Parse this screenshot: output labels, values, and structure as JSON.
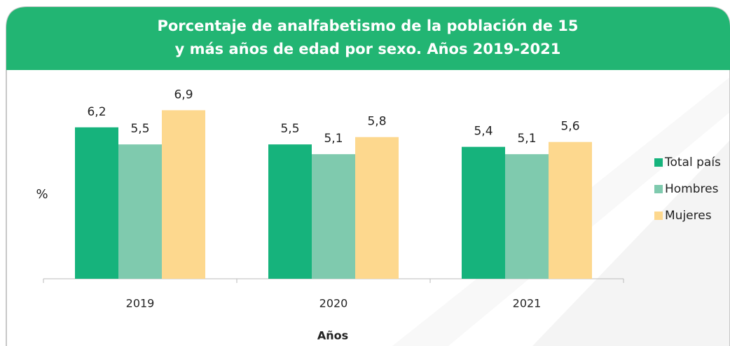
{
  "chart_data": {
    "type": "bar",
    "title_lines": [
      "Porcentaje de analfabetismo de la población de 15",
      "y más años de edad por sexo. Años 2019-2021"
    ],
    "categories": [
      "2019",
      "2020",
      "2021"
    ],
    "series": [
      {
        "name": "Total país",
        "color": "#16b37c",
        "values": [
          6.2,
          5.5,
          5.4
        ],
        "value_labels": [
          "6,2",
          "5,5",
          "5,4"
        ]
      },
      {
        "name": "Hombres",
        "color": "#7fcaae",
        "values": [
          5.5,
          5.1,
          5.1
        ],
        "value_labels": [
          "5,5",
          "5,1",
          "5,1"
        ]
      },
      {
        "name": "Mujeres",
        "color": "#fdd88e",
        "values": [
          6.9,
          5.8,
          5.6
        ],
        "value_labels": [
          "6,9",
          "5,8",
          "5,6"
        ]
      }
    ],
    "ylim": [
      0,
      8
    ],
    "y_label": "%",
    "x_label": "Años",
    "legend": "right"
  }
}
